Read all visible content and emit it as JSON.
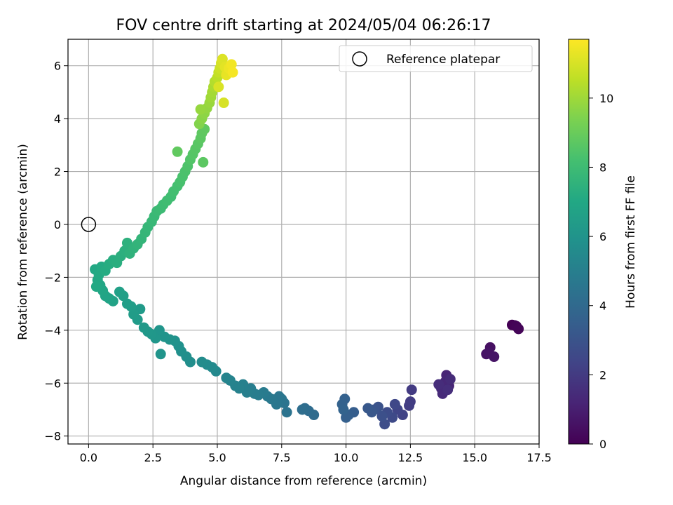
{
  "chart_data": {
    "type": "scatter",
    "title": "FOV centre drift starting at 2024/05/04 06:26:17",
    "xlabel": "Angular distance from reference (arcmin)",
    "ylabel": "Rotation from reference (arcmin)",
    "xlim": [
      -0.8,
      17.5
    ],
    "ylim": [
      -8.3,
      7.0
    ],
    "xticks": [
      0.0,
      2.5,
      5.0,
      7.5,
      10.0,
      12.5,
      15.0,
      17.5
    ],
    "xtick_labels": [
      "0.0",
      "2.5",
      "5.0",
      "7.5",
      "10.0",
      "12.5",
      "15.0",
      "17.5"
    ],
    "yticks": [
      -8,
      -6,
      -4,
      -2,
      0,
      2,
      4,
      6
    ],
    "ytick_labels": [
      "−8",
      "−6",
      "−4",
      "−2",
      "0",
      "2",
      "4",
      "6"
    ],
    "grid": true,
    "legend": {
      "position": "top-right",
      "entries": [
        "Reference platepar"
      ]
    },
    "reference_point": {
      "x": 0.0,
      "y": 0.0
    },
    "colormap": "viridis",
    "colorbar": {
      "label": "Hours from first FF file",
      "range": [
        0,
        11.7
      ],
      "ticks": [
        0,
        2,
        4,
        6,
        8,
        10
      ],
      "tick_labels": [
        "0",
        "2",
        "4",
        "6",
        "8",
        "10"
      ]
    },
    "series": [
      {
        "points": [
          [
            16.45,
            -3.8,
            0.0
          ],
          [
            16.55,
            -3.82,
            0.05
          ],
          [
            16.62,
            -3.85,
            0.1
          ],
          [
            16.7,
            -3.95,
            0.15
          ],
          [
            15.6,
            -4.65,
            0.5
          ],
          [
            15.45,
            -4.9,
            0.55
          ],
          [
            15.55,
            -4.85,
            0.6
          ],
          [
            15.75,
            -5.0,
            0.65
          ],
          [
            14.0,
            -6.1,
            1.2
          ],
          [
            13.9,
            -5.7,
            1.25
          ],
          [
            13.85,
            -5.95,
            1.3
          ],
          [
            13.7,
            -6.2,
            1.35
          ],
          [
            13.75,
            -6.4,
            1.4
          ],
          [
            14.05,
            -5.85,
            1.45
          ],
          [
            13.6,
            -6.05,
            1.5
          ],
          [
            13.95,
            -6.25,
            1.55
          ],
          [
            12.55,
            -6.25,
            2.0
          ],
          [
            12.5,
            -6.7,
            2.05
          ],
          [
            12.45,
            -6.85,
            2.1
          ],
          [
            12.2,
            -7.2,
            2.3
          ],
          [
            12.0,
            -7.0,
            2.4
          ],
          [
            11.9,
            -6.8,
            2.5
          ],
          [
            11.8,
            -7.3,
            2.6
          ],
          [
            11.6,
            -7.1,
            2.7
          ],
          [
            11.5,
            -7.55,
            2.75
          ],
          [
            11.4,
            -7.25,
            2.85
          ],
          [
            11.25,
            -6.9,
            2.95
          ],
          [
            11.1,
            -7.0,
            3.05
          ],
          [
            11.0,
            -7.1,
            3.15
          ],
          [
            10.85,
            -6.95,
            3.2
          ],
          [
            10.3,
            -7.1,
            3.45
          ],
          [
            10.1,
            -7.2,
            3.5
          ],
          [
            10.0,
            -7.3,
            3.55
          ],
          [
            9.95,
            -6.6,
            3.6
          ],
          [
            9.85,
            -6.8,
            3.65
          ],
          [
            9.9,
            -7.0,
            3.7
          ],
          [
            8.75,
            -7.2,
            4.05
          ],
          [
            8.55,
            -7.05,
            4.1
          ],
          [
            8.4,
            -6.95,
            4.15
          ],
          [
            8.3,
            -7.0,
            4.2
          ],
          [
            7.7,
            -7.1,
            4.45
          ],
          [
            7.6,
            -6.75,
            4.5
          ],
          [
            7.5,
            -6.6,
            4.55
          ],
          [
            7.4,
            -6.5,
            4.6
          ],
          [
            7.3,
            -6.8,
            4.65
          ],
          [
            7.1,
            -6.6,
            4.7
          ],
          [
            6.95,
            -6.5,
            4.75
          ],
          [
            6.8,
            -6.35,
            4.8
          ],
          [
            6.6,
            -6.45,
            4.85
          ],
          [
            6.45,
            -6.4,
            4.9
          ],
          [
            6.3,
            -6.2,
            4.95
          ],
          [
            6.15,
            -6.35,
            5.0
          ],
          [
            6.0,
            -6.05,
            5.05
          ],
          [
            5.85,
            -6.2,
            5.1
          ],
          [
            5.7,
            -6.1,
            5.15
          ],
          [
            5.5,
            -5.9,
            5.2
          ],
          [
            5.35,
            -5.8,
            5.25
          ],
          [
            4.95,
            -5.55,
            5.45
          ],
          [
            4.8,
            -5.4,
            5.5
          ],
          [
            4.6,
            -5.3,
            5.55
          ],
          [
            4.4,
            -5.2,
            5.6
          ],
          [
            3.95,
            -5.2,
            5.7
          ],
          [
            3.8,
            -5.0,
            5.75
          ],
          [
            3.6,
            -4.8,
            5.8
          ],
          [
            3.5,
            -4.6,
            5.85
          ],
          [
            3.35,
            -4.4,
            5.9
          ],
          [
            3.15,
            -4.35,
            5.95
          ],
          [
            2.95,
            -4.25,
            6.0
          ],
          [
            2.8,
            -4.9,
            6.02
          ],
          [
            2.75,
            -4.0,
            6.05
          ],
          [
            2.6,
            -4.3,
            6.1
          ],
          [
            2.45,
            -4.15,
            6.15
          ],
          [
            2.3,
            -4.05,
            6.2
          ],
          [
            2.15,
            -3.9,
            6.25
          ],
          [
            2.0,
            -3.2,
            6.3
          ],
          [
            1.9,
            -3.6,
            6.35
          ],
          [
            1.75,
            -3.4,
            6.4
          ],
          [
            1.65,
            -3.1,
            6.45
          ],
          [
            1.5,
            -3.0,
            6.5
          ],
          [
            1.35,
            -2.7,
            6.55
          ],
          [
            1.2,
            -2.55,
            6.6
          ],
          [
            0.95,
            -2.9,
            6.7
          ],
          [
            0.8,
            -2.8,
            6.75
          ],
          [
            0.65,
            -2.7,
            6.8
          ],
          [
            0.55,
            -2.5,
            6.85
          ],
          [
            0.45,
            -2.3,
            6.9
          ],
          [
            0.35,
            -2.1,
            6.95
          ],
          [
            0.25,
            -1.7,
            7.0
          ],
          [
            0.3,
            -2.35,
            7.02
          ],
          [
            0.4,
            -1.9,
            7.05
          ],
          [
            0.5,
            -1.6,
            7.1
          ],
          [
            0.65,
            -1.75,
            7.15
          ],
          [
            0.8,
            -1.5,
            7.2
          ],
          [
            0.95,
            -1.35,
            7.25
          ],
          [
            1.1,
            -1.45,
            7.3
          ],
          [
            1.25,
            -1.2,
            7.35
          ],
          [
            1.4,
            -1.0,
            7.4
          ],
          [
            1.5,
            -0.7,
            7.45
          ],
          [
            1.6,
            -1.1,
            7.5
          ],
          [
            1.75,
            -0.9,
            7.55
          ],
          [
            1.9,
            -0.75,
            7.6
          ],
          [
            2.05,
            -0.55,
            7.65
          ],
          [
            2.2,
            -0.3,
            7.7
          ],
          [
            2.3,
            -0.1,
            7.75
          ],
          [
            2.45,
            0.1,
            7.8
          ],
          [
            2.55,
            0.3,
            7.85
          ],
          [
            2.65,
            0.5,
            7.9
          ],
          [
            2.8,
            0.6,
            7.95
          ],
          [
            2.9,
            0.75,
            8.0
          ],
          [
            3.05,
            0.9,
            8.05
          ],
          [
            3.2,
            1.05,
            8.1
          ],
          [
            3.3,
            1.25,
            8.15
          ],
          [
            3.45,
            1.45,
            8.2
          ],
          [
            3.55,
            1.6,
            8.25
          ],
          [
            3.65,
            1.8,
            8.3
          ],
          [
            3.75,
            2.0,
            8.35
          ],
          [
            3.85,
            2.2,
            8.4
          ],
          [
            3.95,
            2.45,
            8.5
          ],
          [
            4.05,
            2.65,
            8.55
          ],
          [
            4.15,
            2.85,
            8.6
          ],
          [
            4.25,
            3.05,
            8.65
          ],
          [
            4.35,
            3.25,
            8.7
          ],
          [
            4.45,
            2.35,
            8.72
          ],
          [
            4.4,
            3.45,
            8.75
          ],
          [
            4.5,
            3.6,
            8.8
          ],
          [
            3.45,
            2.75,
            8.82
          ],
          [
            4.3,
            3.8,
            9.5
          ],
          [
            4.4,
            4.0,
            9.6
          ],
          [
            4.5,
            4.2,
            9.7
          ],
          [
            4.6,
            4.4,
            9.8
          ],
          [
            4.35,
            4.35,
            9.85
          ],
          [
            4.7,
            4.6,
            9.9
          ],
          [
            4.75,
            4.8,
            10.0
          ],
          [
            4.8,
            5.0,
            10.1
          ],
          [
            4.85,
            5.2,
            10.2
          ],
          [
            4.9,
            5.4,
            10.35
          ],
          [
            5.0,
            5.55,
            10.5
          ],
          [
            5.05,
            5.75,
            10.65
          ],
          [
            5.1,
            5.9,
            10.8
          ],
          [
            5.15,
            6.1,
            10.95
          ],
          [
            5.2,
            6.25,
            11.1
          ],
          [
            5.3,
            5.95,
            11.2
          ],
          [
            5.35,
            5.65,
            11.3
          ],
          [
            5.45,
            5.9,
            11.4
          ],
          [
            5.55,
            6.05,
            11.5
          ],
          [
            5.6,
            5.75,
            11.55
          ],
          [
            5.25,
            4.6,
            11.0
          ],
          [
            5.05,
            5.2,
            11.05
          ]
        ]
      }
    ]
  }
}
